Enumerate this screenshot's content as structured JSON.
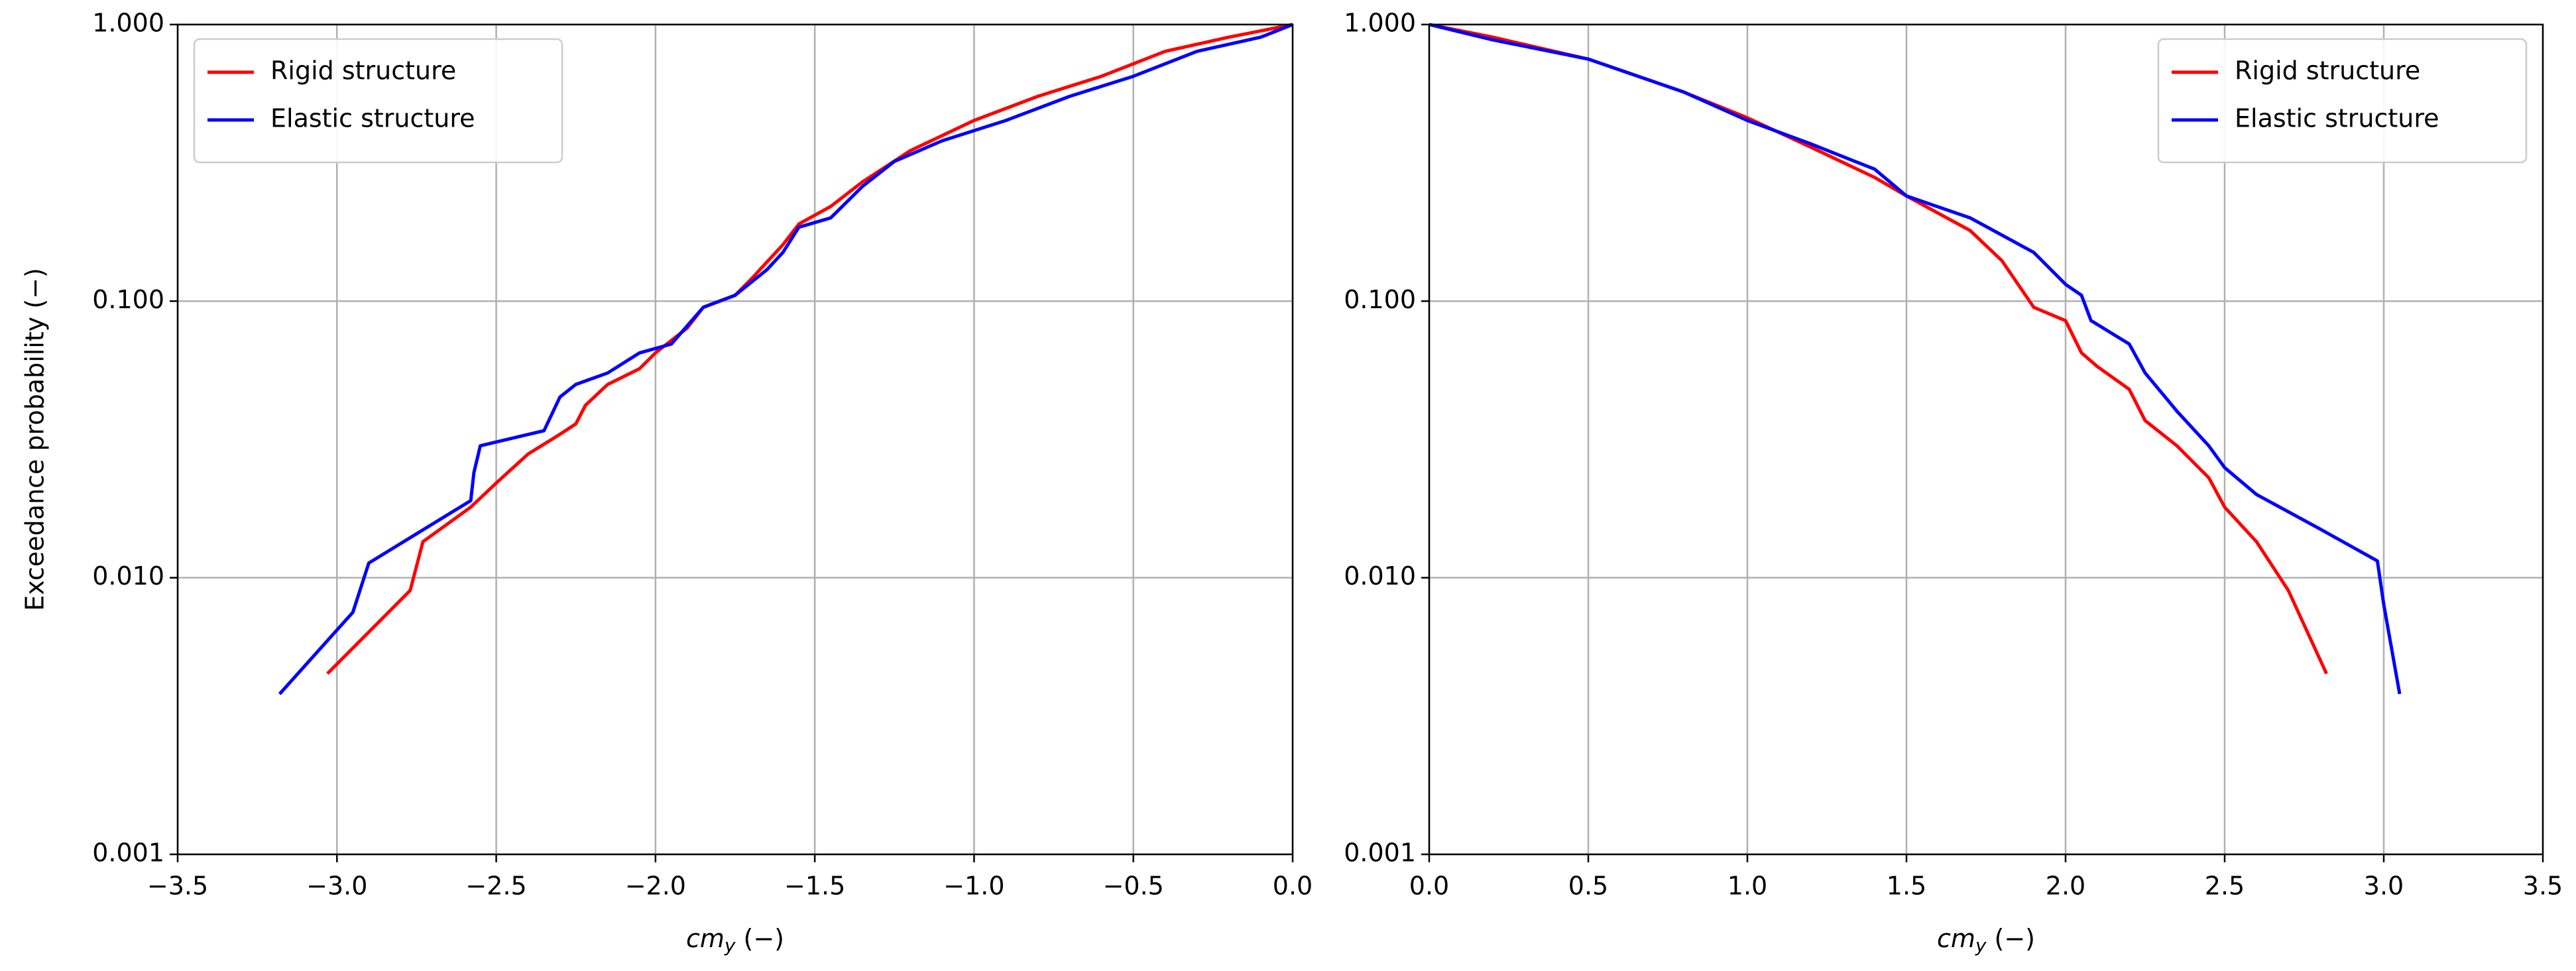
{
  "chart_data": [
    {
      "type": "line",
      "log_y": true,
      "grid": true,
      "legend": "upper left",
      "ylabel": "Exceedance probability (−)",
      "xlabel": {
        "italic": "cm",
        "sub": "y",
        "rest": "(−)"
      },
      "xlim": [
        -3.5,
        0.0
      ],
      "ylim": [
        0.001,
        1.0
      ],
      "xticks": [
        {
          "value": -3.5,
          "label": "−3.5"
        },
        {
          "value": -3.0,
          "label": "−3.0"
        },
        {
          "value": -2.5,
          "label": "−2.5"
        },
        {
          "value": -2.0,
          "label": "−2.0"
        },
        {
          "value": -1.5,
          "label": "−1.5"
        },
        {
          "value": -1.0,
          "label": "−1.0"
        },
        {
          "value": -0.5,
          "label": "−0.5"
        },
        {
          "value": 0.0,
          "label": "0.0"
        }
      ],
      "yticks": [
        {
          "value": 0.001,
          "label": "0.001"
        },
        {
          "value": 0.01,
          "label": "0.010"
        },
        {
          "value": 0.1,
          "label": "0.100"
        },
        {
          "value": 1.0,
          "label": "1.000"
        }
      ],
      "series": [
        {
          "name": "Rigid structure",
          "color": "#ff0000",
          "x": [
            -3.03,
            -2.77,
            -2.73,
            -2.58,
            -2.5,
            -2.4,
            -2.3,
            -2.25,
            -2.22,
            -2.15,
            -2.05,
            -2.0,
            -1.9,
            -1.85,
            -1.75,
            -1.7,
            -1.6,
            -1.55,
            -1.45,
            -1.35,
            -1.2,
            -1.0,
            -0.8,
            -0.6,
            -0.4,
            -0.2,
            0.0
          ],
          "values": [
            0.0045,
            0.009,
            0.0135,
            0.018,
            0.022,
            0.028,
            0.033,
            0.036,
            0.042,
            0.05,
            0.057,
            0.065,
            0.08,
            0.095,
            0.105,
            0.12,
            0.16,
            0.19,
            0.22,
            0.27,
            0.35,
            0.45,
            0.55,
            0.65,
            0.8,
            0.9,
            1.0
          ]
        },
        {
          "name": "Elastic structure",
          "color": "#0000ff",
          "x": [
            -3.18,
            -2.95,
            -2.9,
            -2.58,
            -2.57,
            -2.55,
            -2.35,
            -2.3,
            -2.25,
            -2.15,
            -2.05,
            -1.95,
            -1.85,
            -1.75,
            -1.65,
            -1.6,
            -1.55,
            -1.45,
            -1.35,
            -1.25,
            -1.1,
            -0.9,
            -0.7,
            -0.5,
            -0.3,
            -0.1,
            0.0
          ],
          "values": [
            0.0038,
            0.0075,
            0.0113,
            0.019,
            0.024,
            0.03,
            0.034,
            0.045,
            0.05,
            0.055,
            0.065,
            0.07,
            0.095,
            0.105,
            0.13,
            0.15,
            0.185,
            0.2,
            0.26,
            0.32,
            0.38,
            0.45,
            0.55,
            0.65,
            0.8,
            0.9,
            1.0
          ]
        }
      ]
    },
    {
      "type": "line",
      "log_y": true,
      "grid": true,
      "legend": "upper right",
      "xlabel": {
        "italic": "cm",
        "sub": "y",
        "rest": "(−)"
      },
      "xlim": [
        0.0,
        3.5
      ],
      "ylim": [
        0.001,
        1.0
      ],
      "xticks": [
        {
          "value": 0.0,
          "label": "0.0"
        },
        0.5,
        {
          "value": 1.0,
          "label": "1.0"
        },
        1.5,
        {
          "value": 2.0,
          "label": "2.0"
        },
        2.5,
        {
          "value": 3.0,
          "label": "3.0"
        },
        3.5
      ],
      "yticks": [
        {
          "value": 0.001,
          "label": "0.001"
        },
        {
          "value": 0.01,
          "label": "0.010"
        },
        {
          "value": 0.1,
          "label": "0.100"
        },
        {
          "value": 1.0,
          "label": "1.000"
        }
      ],
      "series": [
        {
          "name": "Rigid structure",
          "color": "#ff0000",
          "x": [
            0.0,
            0.2,
            0.5,
            0.8,
            1.0,
            1.2,
            1.4,
            1.5,
            1.7,
            1.8,
            1.9,
            2.0,
            2.05,
            2.1,
            2.2,
            2.25,
            2.35,
            2.45,
            2.5,
            2.6,
            2.7,
            2.82
          ],
          "values": [
            1.0,
            0.9,
            0.75,
            0.57,
            0.46,
            0.36,
            0.28,
            0.24,
            0.18,
            0.14,
            0.095,
            0.085,
            0.065,
            0.058,
            0.048,
            0.037,
            0.03,
            0.023,
            0.018,
            0.0135,
            0.009,
            0.0045
          ]
        },
        {
          "name": "Elastic structure",
          "color": "#0000ff",
          "x": [
            0.0,
            0.2,
            0.5,
            0.8,
            1.0,
            1.2,
            1.4,
            1.5,
            1.7,
            1.9,
            2.0,
            2.05,
            2.08,
            2.2,
            2.25,
            2.35,
            2.45,
            2.5,
            2.6,
            2.8,
            2.98,
            3.0,
            3.05
          ],
          "values": [
            1.0,
            0.88,
            0.75,
            0.57,
            0.45,
            0.37,
            0.3,
            0.24,
            0.2,
            0.15,
            0.115,
            0.105,
            0.085,
            0.07,
            0.055,
            0.04,
            0.03,
            0.025,
            0.02,
            0.015,
            0.0115,
            0.008,
            0.0038
          ]
        }
      ]
    }
  ]
}
